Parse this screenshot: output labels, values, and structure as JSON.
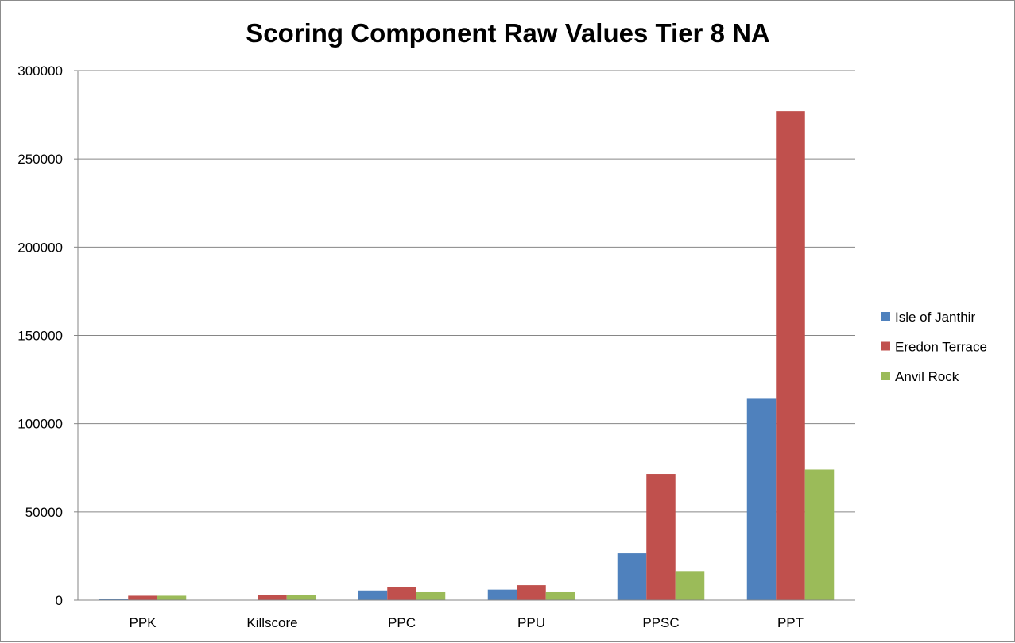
{
  "chart_data": {
    "type": "bar",
    "title": "Scoring Component Raw Values Tier 8 NA",
    "xlabel": "",
    "ylabel": "",
    "categories": [
      "PPK",
      "Killscore",
      "PPC",
      "PPU",
      "PPSC",
      "PPT"
    ],
    "series": [
      {
        "name": "Isle of Janthir",
        "color": "#4f81bd",
        "values": [
          600,
          0,
          5500,
          6000,
          26500,
          114500
        ]
      },
      {
        "name": "Eredon Terrace",
        "color": "#c0504d",
        "values": [
          2500,
          3000,
          7500,
          8500,
          71500,
          277000
        ]
      },
      {
        "name": "Anvil Rock",
        "color": "#9bbb59",
        "values": [
          2500,
          3000,
          4500,
          4500,
          16500,
          74000
        ]
      }
    ],
    "ylim": [
      0,
      300000
    ],
    "yticks": [
      0,
      50000,
      100000,
      150000,
      200000,
      250000,
      300000
    ],
    "grid": true,
    "legend_position": "right"
  }
}
